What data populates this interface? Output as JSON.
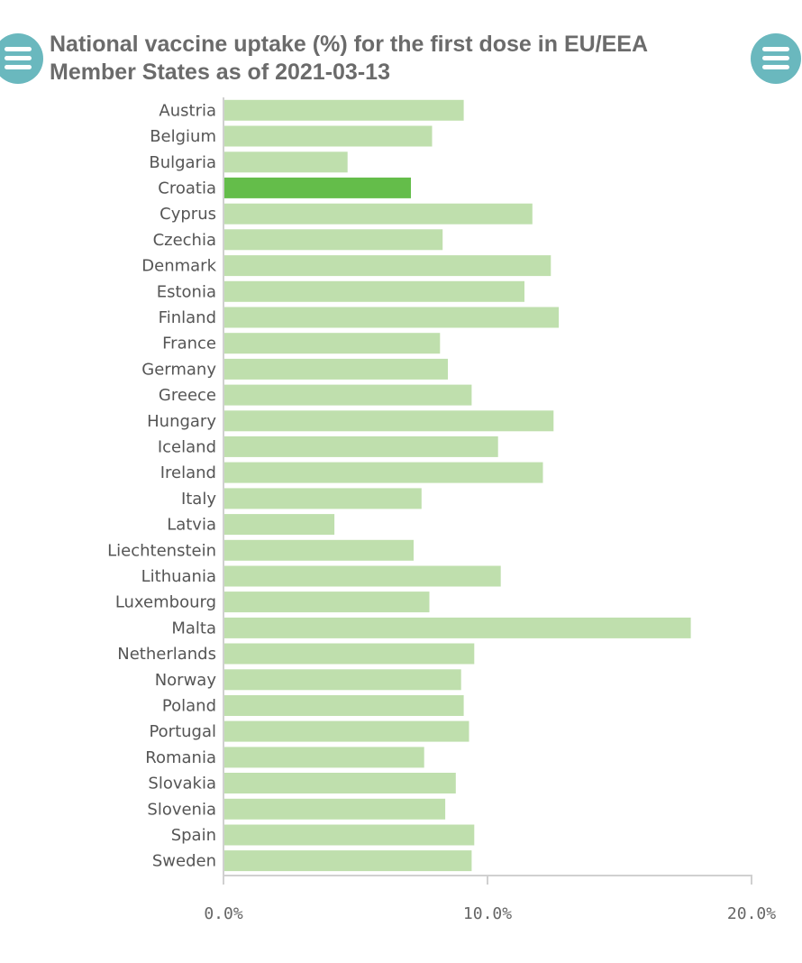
{
  "title": "National vaccine uptake (%) for the first dose in EU/EEA Member States as of 2021-03-13",
  "menu_left": {
    "icon": "menu-icon"
  },
  "menu_right": {
    "icon": "menu-icon"
  },
  "colors": {
    "bar": "#bfdfad",
    "highlight": "#64bd4a",
    "axis": "#d0d0d0",
    "menu": "#6ab8be"
  },
  "chart_data": {
    "type": "bar",
    "orientation": "horizontal",
    "title": "National vaccine uptake (%) for the first dose in EU/EEA Member States as of 2021-03-13",
    "xlabel": "",
    "ylabel": "",
    "xlim": [
      0,
      20
    ],
    "x_ticks": [
      0,
      10,
      20
    ],
    "x_tick_labels": [
      "0.0%",
      "10.0%",
      "20.0%"
    ],
    "highlighted_category": "Croatia",
    "categories": [
      "Austria",
      "Belgium",
      "Bulgaria",
      "Croatia",
      "Cyprus",
      "Czechia",
      "Denmark",
      "Estonia",
      "Finland",
      "France",
      "Germany",
      "Greece",
      "Hungary",
      "Iceland",
      "Ireland",
      "Italy",
      "Latvia",
      "Liechtenstein",
      "Lithuania",
      "Luxembourg",
      "Malta",
      "Netherlands",
      "Norway",
      "Poland",
      "Portugal",
      "Romania",
      "Slovakia",
      "Slovenia",
      "Spain",
      "Sweden"
    ],
    "values": [
      9.1,
      7.9,
      4.7,
      7.1,
      11.7,
      8.3,
      12.4,
      11.4,
      12.7,
      8.2,
      8.5,
      9.4,
      12.5,
      10.4,
      12.1,
      7.5,
      4.2,
      7.2,
      10.5,
      7.8,
      17.7,
      9.5,
      9.0,
      9.1,
      9.3,
      7.6,
      8.8,
      8.4,
      9.5,
      9.4
    ],
    "grid": false,
    "legend": "none"
  }
}
